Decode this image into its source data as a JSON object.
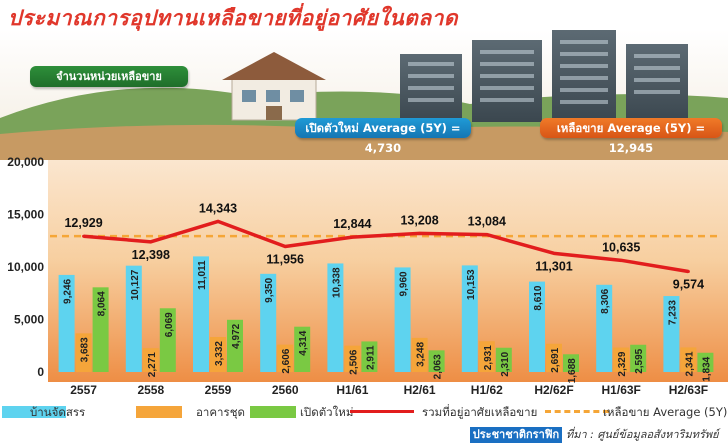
{
  "title": "ประมาณการอุปทานเหลือขายที่อยู่อาศัยในตลาด",
  "units_label": "จำนวนหน่วยเหลือขาย",
  "avg_new_label": "เปิดตัวใหม่ Average (5Y) = 4,730",
  "avg_remaining_label": "เหลือขาย Average (5Y) = 12,945",
  "legend": {
    "house": "บ้านจัดสรร",
    "condo": "อาคารชุด",
    "new": "เปิดตัวใหม่",
    "total": "รวมที่อยู่อาศัยเหลือขาย",
    "avg": "เหลือขาย Average (5Y)"
  },
  "brand": "ประชาชาติกราฟิก",
  "source": "ที่มา : ศูนย์ข้อมูลอสังหาริมทรัพย์",
  "colors": {
    "house": "#5ed3ef",
    "condo": "#f5a53a",
    "new": "#7ac943",
    "total_line": "#e21d1d",
    "avg_line": "#f5a637",
    "title": "#e0372b"
  },
  "chart_data": {
    "type": "bar",
    "categories": [
      "2557",
      "2558",
      "2559",
      "2560",
      "H1/61",
      "H2/61",
      "H1/62",
      "H2/62F",
      "H1/63F",
      "H2/63F"
    ],
    "ylim": [
      0,
      20000
    ],
    "yticks": [
      "0",
      "5,000",
      "10,000",
      "15,000",
      "20,000"
    ],
    "grid": false,
    "series": [
      {
        "name": "บ้านจัดสรร",
        "values": [
          9246,
          10127,
          11011,
          9350,
          10338,
          9960,
          10153,
          8610,
          8306,
          7233
        ],
        "labels": [
          "9,246",
          "10,127",
          "11,011",
          "9,350",
          "10,338",
          "9,960",
          "10,153",
          "8,610",
          "8,306",
          "7,233"
        ]
      },
      {
        "name": "อาคารชุด",
        "values": [
          3683,
          2271,
          3332,
          2606,
          2506,
          3248,
          2931,
          2691,
          2329,
          2341
        ],
        "labels": [
          "3,683",
          "2,271",
          "3,332",
          "2,606",
          "2,506",
          "3,248",
          "2,931",
          "2,691",
          "2,329",
          "2,341"
        ]
      },
      {
        "name": "เปิดตัวใหม่",
        "values": [
          8064,
          6069,
          4972,
          4314,
          2911,
          2063,
          2310,
          1688,
          2595,
          1834
        ],
        "labels": [
          "8,064",
          "6,069",
          "4,972",
          "4,314",
          "2,911",
          "2,063",
          "2,310",
          "1,688",
          "2,595",
          "1,834"
        ]
      },
      {
        "name": "รวมที่อยู่อาศัยเหลือขาย",
        "type": "line",
        "values": [
          12929,
          12398,
          14343,
          11956,
          12844,
          13208,
          13084,
          11301,
          10635,
          9574
        ],
        "labels": [
          "12,929",
          "12,398",
          "14,343",
          "11,956",
          "12,844",
          "13,208",
          "13,084",
          "11,301",
          "10,635",
          "9,574"
        ]
      }
    ],
    "reference_line": {
      "name": "เหลือขาย Average (5Y)",
      "value": 12945
    }
  }
}
